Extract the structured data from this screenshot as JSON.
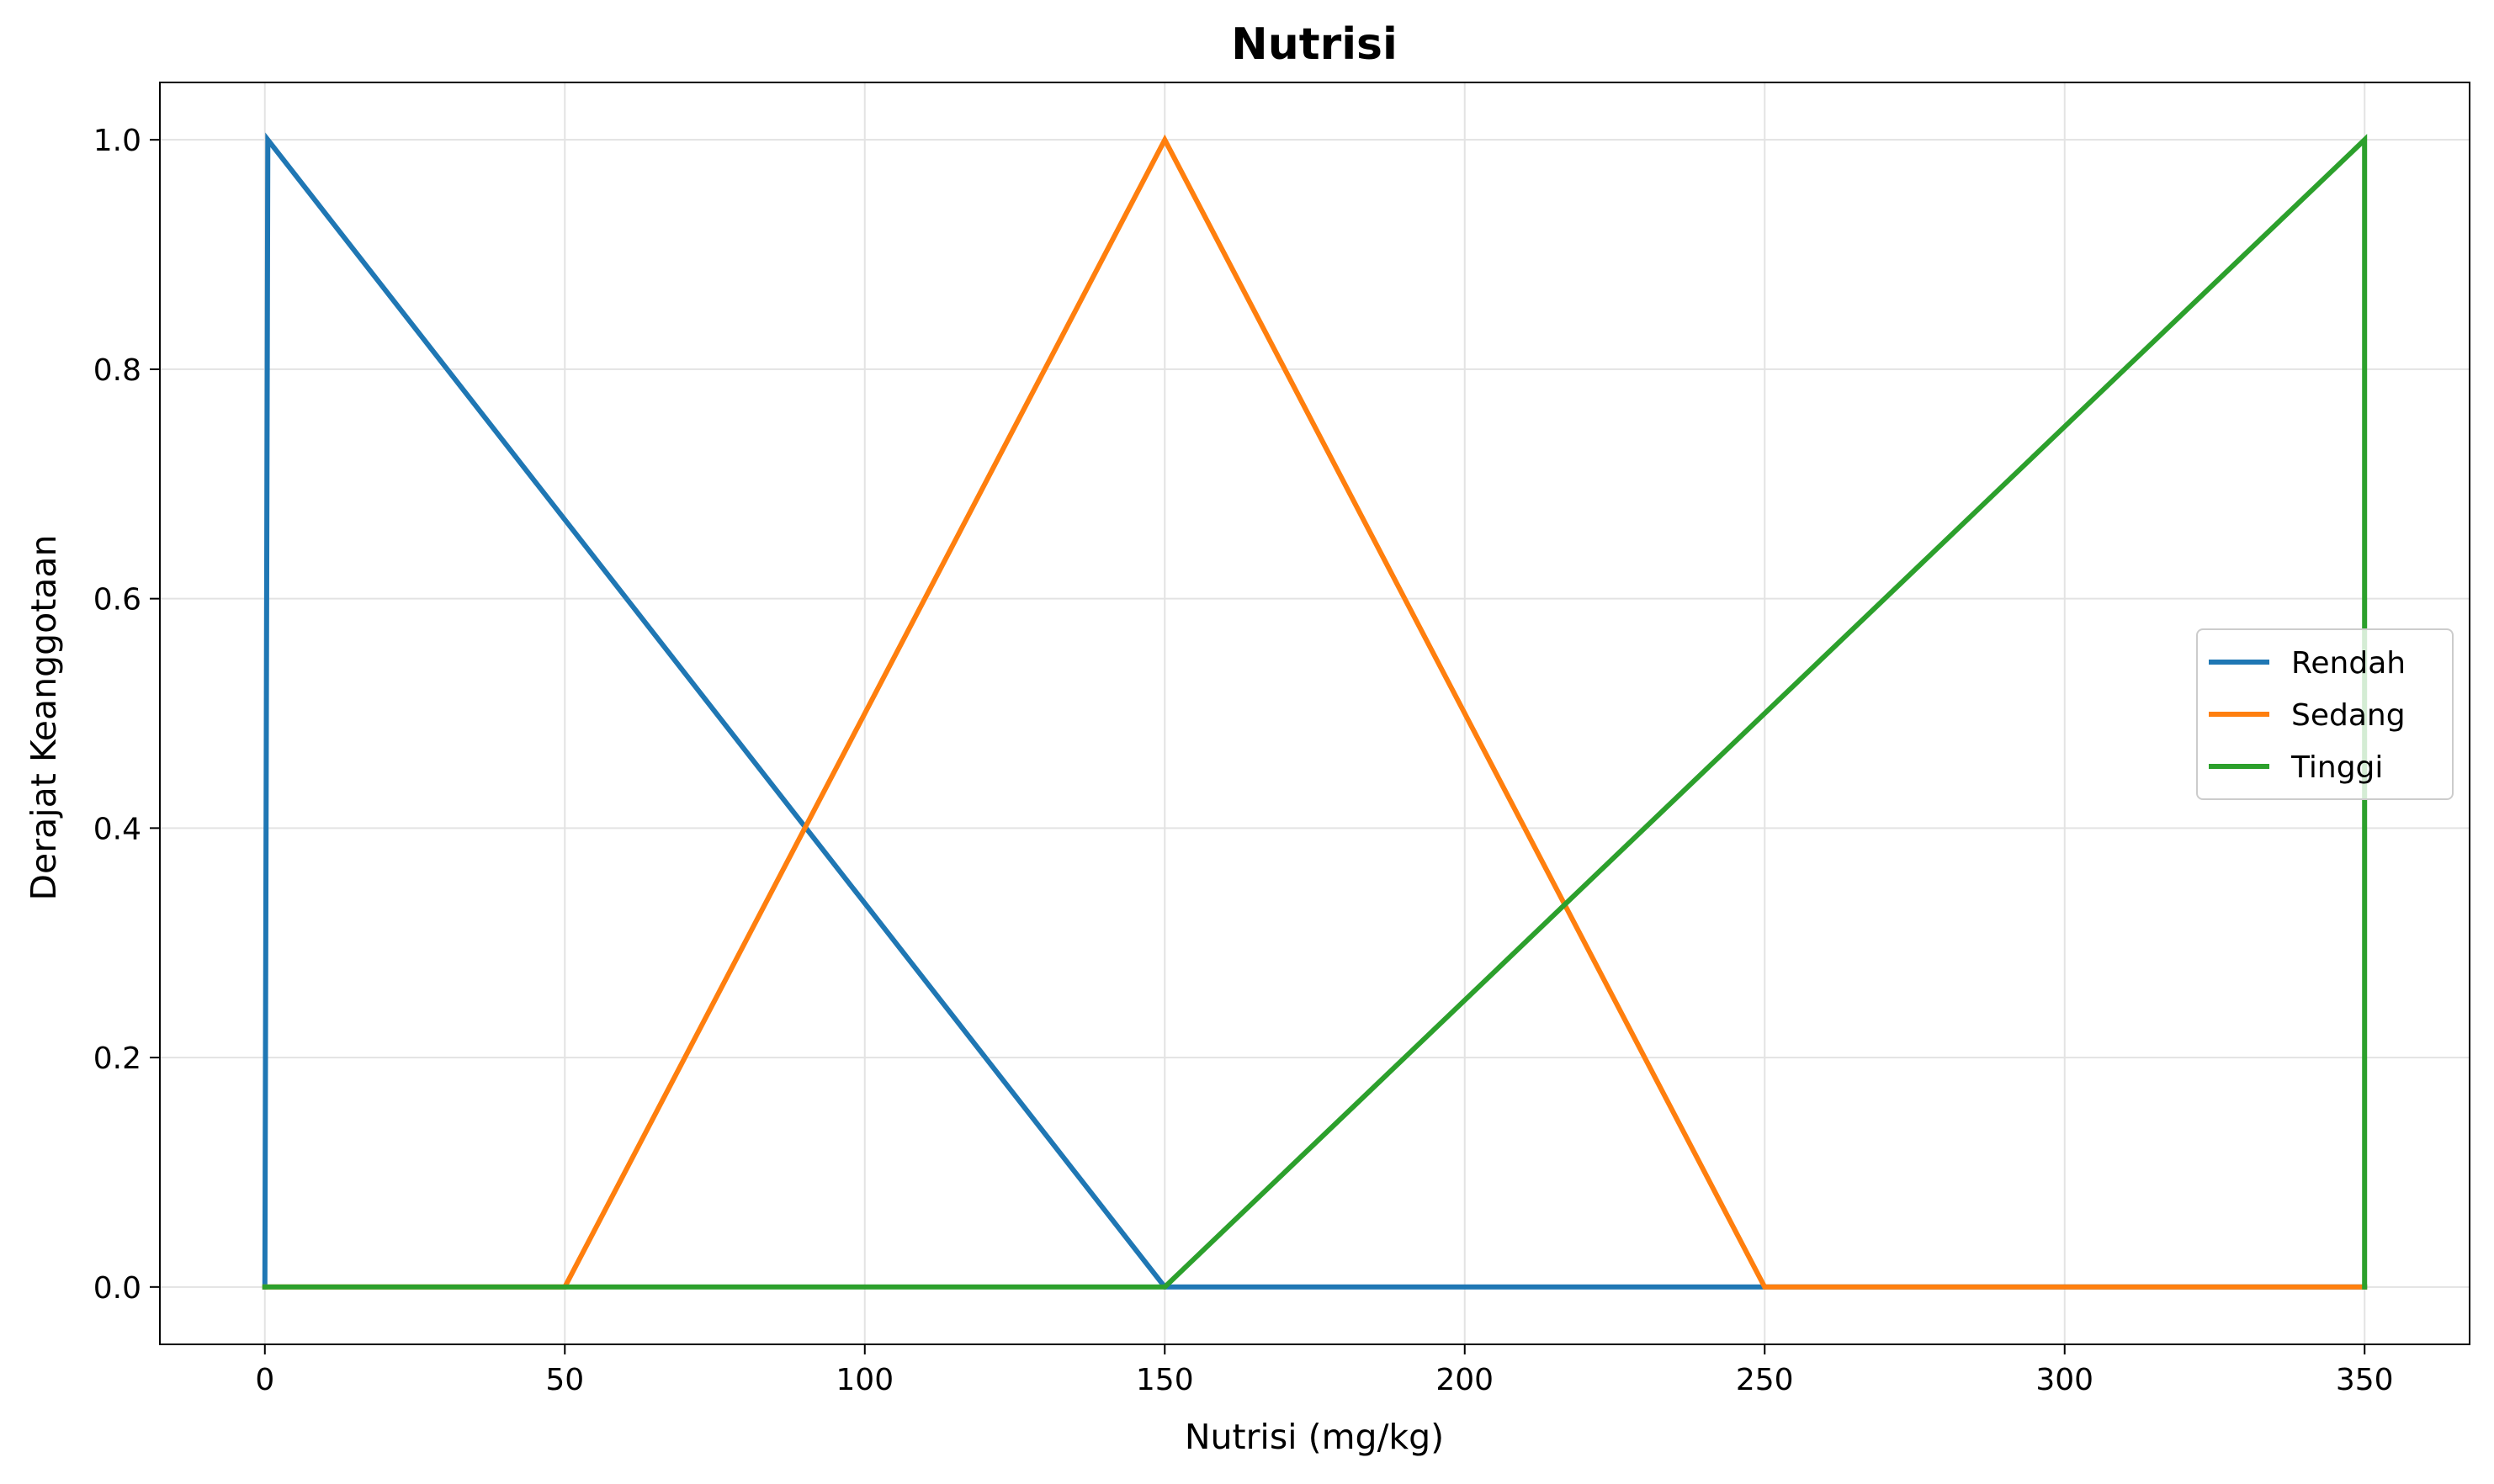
{
  "chart_data": {
    "type": "line",
    "title": "Nutrisi",
    "xlabel": "Nutrisi (mg/kg)",
    "ylabel": "Derajat Keanggotaan",
    "xlim": [
      -17.5,
      367.5
    ],
    "ylim": [
      -0.05,
      1.05
    ],
    "xticks": [
      0,
      50,
      100,
      150,
      200,
      250,
      300,
      350
    ],
    "yticks": [
      0.0,
      0.2,
      0.4,
      0.6,
      0.8,
      1.0
    ],
    "xtick_labels": [
      "0",
      "50",
      "100",
      "150",
      "200",
      "250",
      "300",
      "350"
    ],
    "ytick_labels": [
      "0.0",
      "0.2",
      "0.4",
      "0.6",
      "0.8",
      "1.0"
    ],
    "grid": true,
    "legend_position": "center-right",
    "series": [
      {
        "name": "Rendah",
        "color": "#1f77b4",
        "x": [
          0,
          0.5,
          150,
          350
        ],
        "y": [
          0,
          1,
          0,
          0
        ]
      },
      {
        "name": "Sedang",
        "color": "#ff7f0e",
        "x": [
          0,
          50,
          150,
          250,
          350
        ],
        "y": [
          0,
          0,
          1,
          0,
          0
        ]
      },
      {
        "name": "Tinggi",
        "color": "#2ca02c",
        "x": [
          0,
          150,
          350,
          350
        ],
        "y": [
          0,
          0,
          1,
          0
        ]
      }
    ]
  }
}
